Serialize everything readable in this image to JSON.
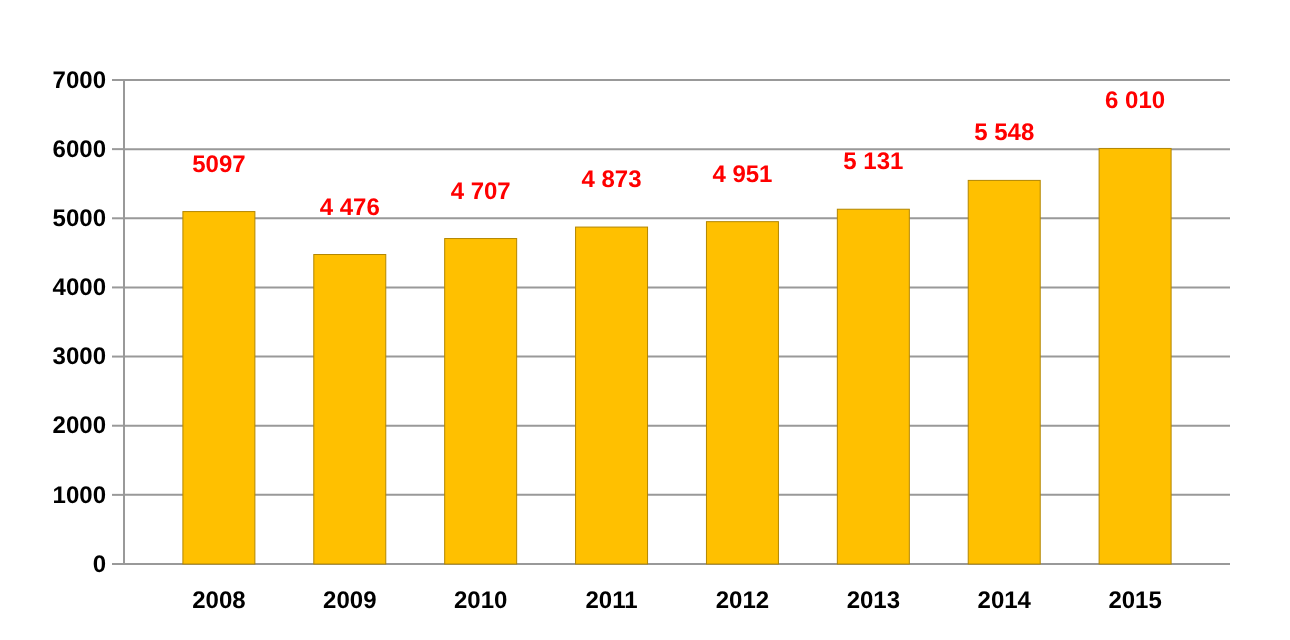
{
  "chart_data": {
    "type": "bar",
    "categories": [
      "2008",
      "2009",
      "2010",
      "2011",
      "2012",
      "2013",
      "2014",
      "2015"
    ],
    "values": [
      5097,
      4476,
      4707,
      4873,
      4951,
      5131,
      5548,
      6010
    ],
    "value_labels": [
      "5097",
      "4 476",
      "4 707",
      "4 873",
      "4 951",
      "5 131",
      "5 548",
      "6 010"
    ],
    "color": "#ffc000",
    "ylim": [
      0,
      7000
    ],
    "yticks": [
      0,
      1000,
      2000,
      3000,
      4000,
      5000,
      6000,
      7000
    ],
    "grid": "y"
  }
}
